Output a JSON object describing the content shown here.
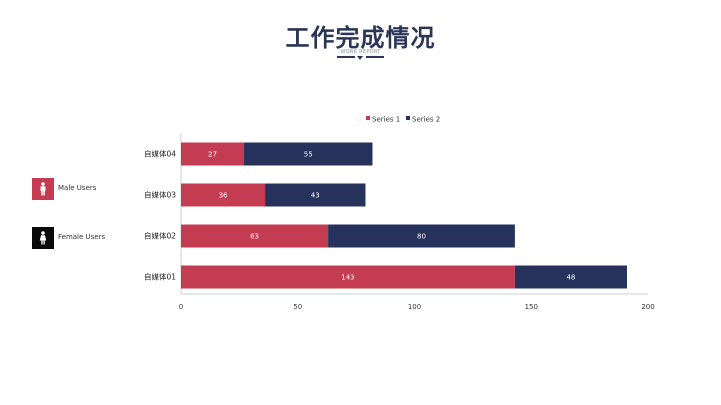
{
  "header": {
    "title": "工作完成情况",
    "subtitle": "WORK REPORT"
  },
  "side_legend": [
    {
      "label": "Male Users",
      "color": "#c43c52",
      "icon": "person-icon"
    },
    {
      "label": "Female Users",
      "color": "#0a0a0a",
      "icon": "person-icon"
    }
  ],
  "chart_data": {
    "type": "bar",
    "orientation": "horizontal",
    "stacked": true,
    "categories": [
      "自媒体01",
      "自媒体02",
      "自媒体03",
      "自媒体04"
    ],
    "series": [
      {
        "name": "Series 1",
        "color": "#c43c52",
        "values": [
          143,
          63,
          36,
          27
        ]
      },
      {
        "name": "Series 2",
        "color": "#26315c",
        "values": [
          48,
          80,
          43,
          55
        ]
      }
    ],
    "xlim": [
      0,
      200
    ],
    "xticks": [
      0,
      50,
      100,
      150,
      200
    ],
    "legend_position": "top",
    "grid": false,
    "data_labels": true
  }
}
